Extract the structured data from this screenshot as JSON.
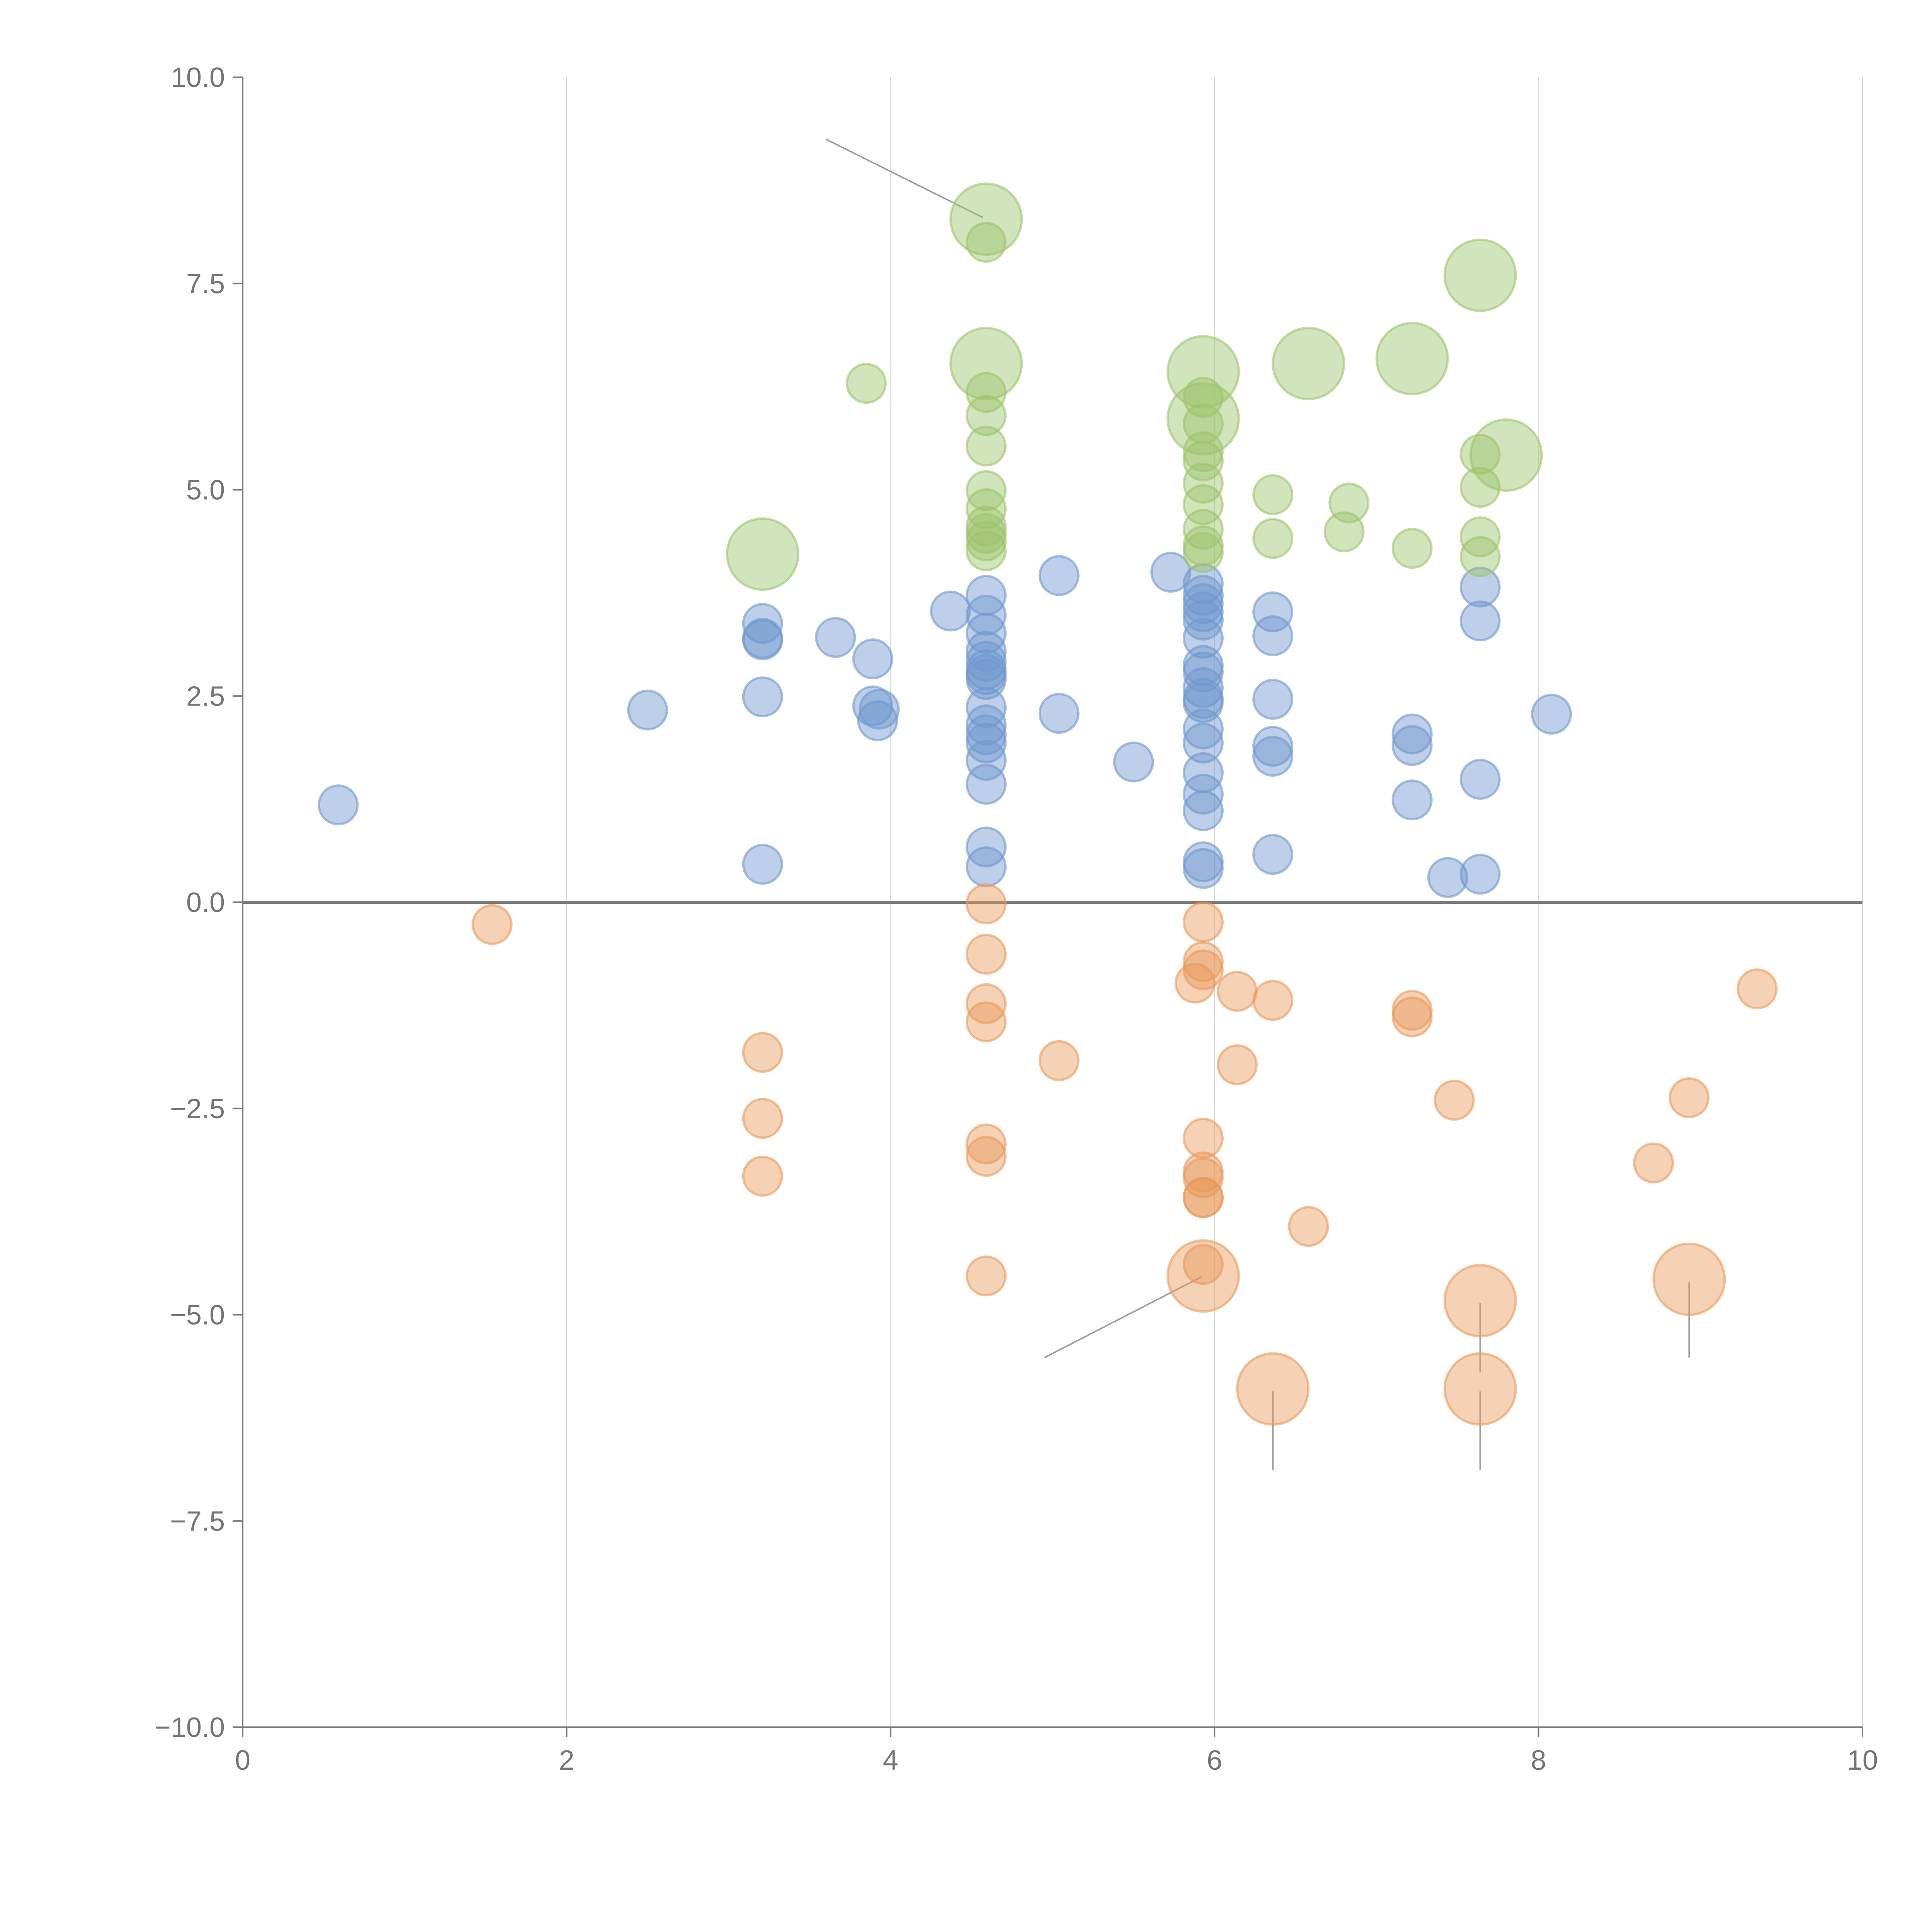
{
  "chart_data": {
    "type": "scatter",
    "title": "",
    "xlabel": "",
    "ylabel": "",
    "xlim": [
      0,
      10
    ],
    "ylim": [
      -10,
      10
    ],
    "x_ticks": [
      0,
      2,
      4,
      6,
      8,
      10
    ],
    "y_ticks": [
      10,
      7.5,
      5,
      2.5,
      0,
      -2.5,
      -5,
      -7.5,
      -10
    ],
    "x_tick_labels": [
      "0",
      "2",
      "4",
      "6",
      "8",
      "10"
    ],
    "y_tick_labels": [
      "10.0",
      "7.5",
      "5.0",
      "2.5",
      "0.0",
      "−2.5",
      "−5.0",
      "−7.5",
      "−10.0"
    ],
    "grid": "vertical",
    "zero_line": true,
    "colors": {
      "positive_low": "#6f97cf",
      "positive_high": "#9cc46a",
      "negative": "#e99a5a"
    },
    "series": [
      {
        "name": "positive_low",
        "color": "#6f97cf",
        "points": [
          [
            0.59,
            1.18,
            1
          ],
          [
            2.5,
            2.33,
            1
          ],
          [
            3.21,
            3.38,
            1
          ],
          [
            3.21,
            3.18,
            1
          ],
          [
            3.21,
            3.2,
            1
          ],
          [
            3.21,
            2.49,
            1
          ],
          [
            3.21,
            0.46,
            1
          ],
          [
            3.66,
            3.21,
            1
          ],
          [
            3.89,
            2.95,
            1
          ],
          [
            3.89,
            2.38,
            1
          ],
          [
            3.92,
            2.2,
            1
          ],
          [
            3.93,
            2.34,
            1
          ],
          [
            4.37,
            3.53,
            1
          ],
          [
            4.59,
            3.72,
            1
          ],
          [
            4.59,
            3.48,
            1
          ],
          [
            4.59,
            3.26,
            1
          ],
          [
            4.59,
            3.04,
            1
          ],
          [
            4.59,
            2.92,
            1
          ],
          [
            4.59,
            2.82,
            1
          ],
          [
            4.59,
            2.76,
            1
          ],
          [
            4.59,
            2.7,
            1
          ],
          [
            4.59,
            2.36,
            1
          ],
          [
            4.59,
            2.15,
            1
          ],
          [
            4.59,
            2.03,
            1
          ],
          [
            4.59,
            1.93,
            1
          ],
          [
            4.59,
            1.72,
            1
          ],
          [
            4.59,
            1.43,
            1
          ],
          [
            4.59,
            0.67,
            1
          ],
          [
            4.59,
            0.43,
            1
          ],
          [
            5.04,
            3.96,
            1
          ],
          [
            5.04,
            2.29,
            1
          ],
          [
            5.5,
            1.7,
            1
          ],
          [
            5.73,
            4.0,
            1
          ],
          [
            5.93,
            3.86,
            1
          ],
          [
            5.93,
            3.72,
            1
          ],
          [
            5.93,
            3.62,
            1
          ],
          [
            5.93,
            3.52,
            1
          ],
          [
            5.93,
            3.42,
            1
          ],
          [
            5.93,
            3.2,
            1
          ],
          [
            5.93,
            2.87,
            1
          ],
          [
            5.93,
            2.79,
            1
          ],
          [
            5.93,
            2.6,
            1
          ],
          [
            5.93,
            2.47,
            1
          ],
          [
            5.93,
            2.42,
            1
          ],
          [
            5.93,
            2.1,
            1
          ],
          [
            5.93,
            1.93,
            1
          ],
          [
            5.93,
            1.57,
            1
          ],
          [
            5.93,
            1.31,
            1
          ],
          [
            5.93,
            1.11,
            1
          ],
          [
            5.93,
            0.49,
            1
          ],
          [
            5.93,
            0.41,
            1
          ],
          [
            6.36,
            3.52,
            1
          ],
          [
            6.36,
            3.23,
            1
          ],
          [
            6.36,
            2.46,
            1
          ],
          [
            6.36,
            1.89,
            1
          ],
          [
            6.36,
            1.77,
            1
          ],
          [
            6.36,
            0.58,
            1
          ],
          [
            7.22,
            2.04,
            1
          ],
          [
            7.22,
            1.9,
            1
          ],
          [
            7.22,
            1.24,
            1
          ],
          [
            7.44,
            0.3,
            1
          ],
          [
            7.64,
            3.82,
            1
          ],
          [
            7.64,
            3.41,
            1
          ],
          [
            7.64,
            1.49,
            1
          ],
          [
            7.64,
            0.34,
            1
          ],
          [
            8.08,
            2.28,
            1
          ]
        ]
      },
      {
        "name": "positive_high",
        "color": "#9cc46a",
        "points": [
          [
            3.21,
            4.22,
            2
          ],
          [
            3.85,
            6.29,
            1
          ],
          [
            4.59,
            8.28,
            2
          ],
          [
            4.59,
            8.0,
            1
          ],
          [
            4.59,
            6.53,
            2
          ],
          [
            4.59,
            6.18,
            1
          ],
          [
            4.59,
            5.9,
            1
          ],
          [
            4.59,
            5.53,
            1
          ],
          [
            4.59,
            4.99,
            1
          ],
          [
            4.59,
            4.77,
            1
          ],
          [
            4.59,
            4.56,
            1
          ],
          [
            4.59,
            4.47,
            1
          ],
          [
            4.59,
            4.38,
            1
          ],
          [
            4.59,
            4.26,
            1
          ],
          [
            5.93,
            6.43,
            2
          ],
          [
            5.93,
            6.12,
            1
          ],
          [
            5.93,
            5.86,
            2
          ],
          [
            5.93,
            5.8,
            1
          ],
          [
            5.93,
            5.46,
            1
          ],
          [
            5.93,
            5.35,
            1
          ],
          [
            5.93,
            5.08,
            1
          ],
          [
            5.93,
            4.82,
            1
          ],
          [
            5.93,
            4.52,
            1
          ],
          [
            5.93,
            4.32,
            1
          ],
          [
            5.93,
            4.24,
            1
          ],
          [
            6.36,
            4.94,
            1
          ],
          [
            6.36,
            4.41,
            1
          ],
          [
            6.58,
            6.53,
            2
          ],
          [
            6.8,
            4.49,
            1
          ],
          [
            6.83,
            4.84,
            1
          ],
          [
            7.22,
            6.59,
            2
          ],
          [
            7.22,
            4.29,
            1
          ],
          [
            7.64,
            7.6,
            2
          ],
          [
            7.64,
            5.43,
            1
          ],
          [
            7.64,
            5.03,
            1
          ],
          [
            7.64,
            4.43,
            1
          ],
          [
            7.64,
            4.19,
            1
          ],
          [
            7.8,
            5.42,
            2
          ]
        ]
      },
      {
        "name": "negative",
        "color": "#e99a5a",
        "points": [
          [
            1.54,
            -0.27,
            1
          ],
          [
            3.21,
            -1.82,
            1
          ],
          [
            3.21,
            -2.62,
            1
          ],
          [
            3.21,
            -3.32,
            1
          ],
          [
            4.59,
            -0.02,
            1
          ],
          [
            4.59,
            -0.63,
            1
          ],
          [
            4.59,
            -1.23,
            1
          ],
          [
            4.59,
            -1.45,
            1
          ],
          [
            4.59,
            -2.93,
            1
          ],
          [
            4.59,
            -3.08,
            1
          ],
          [
            4.59,
            -4.53,
            1
          ],
          [
            5.04,
            -1.92,
            1
          ],
          [
            5.93,
            -0.24,
            1
          ],
          [
            5.93,
            -0.72,
            1
          ],
          [
            5.93,
            -0.82,
            1
          ],
          [
            5.88,
            -0.98,
            1
          ],
          [
            5.93,
            -2.86,
            1
          ],
          [
            5.93,
            -3.27,
            1
          ],
          [
            5.93,
            -3.34,
            1
          ],
          [
            5.93,
            -3.58,
            1
          ],
          [
            5.93,
            -3.58,
            1
          ],
          [
            5.93,
            -4.39,
            1
          ],
          [
            5.93,
            -4.53,
            2
          ],
          [
            6.14,
            -1.08,
            1
          ],
          [
            6.14,
            -1.97,
            1
          ],
          [
            6.36,
            -1.19,
            1
          ],
          [
            6.36,
            -5.9,
            2
          ],
          [
            6.58,
            -3.93,
            1
          ],
          [
            7.22,
            -1.31,
            1
          ],
          [
            7.22,
            -1.39,
            1
          ],
          [
            7.48,
            -2.4,
            1
          ],
          [
            7.64,
            -4.83,
            2
          ],
          [
            7.64,
            -5.9,
            2
          ],
          [
            8.71,
            -3.16,
            1
          ],
          [
            8.93,
            -2.37,
            1
          ],
          [
            8.93,
            -4.57,
            2
          ],
          [
            9.35,
            -1.05,
            1
          ]
        ]
      }
    ],
    "annotations": [
      {
        "target": [
          4.57,
          8.3
        ],
        "from": [
          3.6,
          9.25
        ]
      },
      {
        "target": [
          5.92,
          -4.54
        ],
        "from": [
          4.95,
          -5.52
        ]
      },
      {
        "target": [
          6.36,
          -5.93
        ],
        "from": [
          6.36,
          -6.88
        ]
      },
      {
        "target": [
          7.64,
          -5.93
        ],
        "from": [
          7.64,
          -6.88
        ]
      },
      {
        "target": [
          7.64,
          -4.86
        ],
        "from": [
          7.64,
          -5.7
        ]
      },
      {
        "target": [
          8.93,
          -4.6
        ],
        "from": [
          8.93,
          -5.52
        ]
      }
    ]
  }
}
